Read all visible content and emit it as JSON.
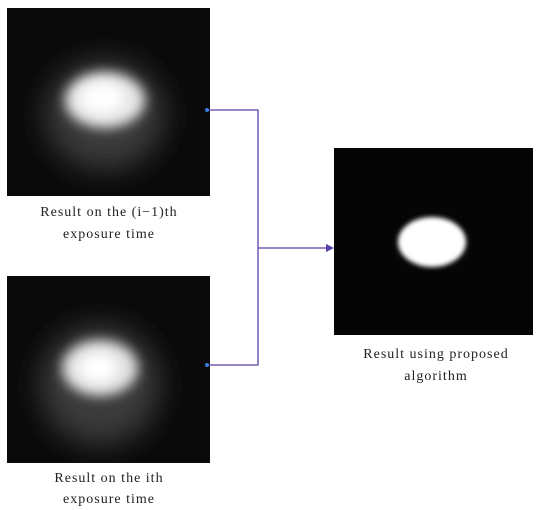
{
  "inputs": [
    {
      "caption_lines": [
        "Result on the (i−1)th",
        "exposure time"
      ]
    },
    {
      "caption_lines": [
        "Result on the ith",
        "exposure time"
      ]
    }
  ],
  "output": {
    "caption_lines": [
      "Result using proposed",
      "algorithm"
    ]
  }
}
